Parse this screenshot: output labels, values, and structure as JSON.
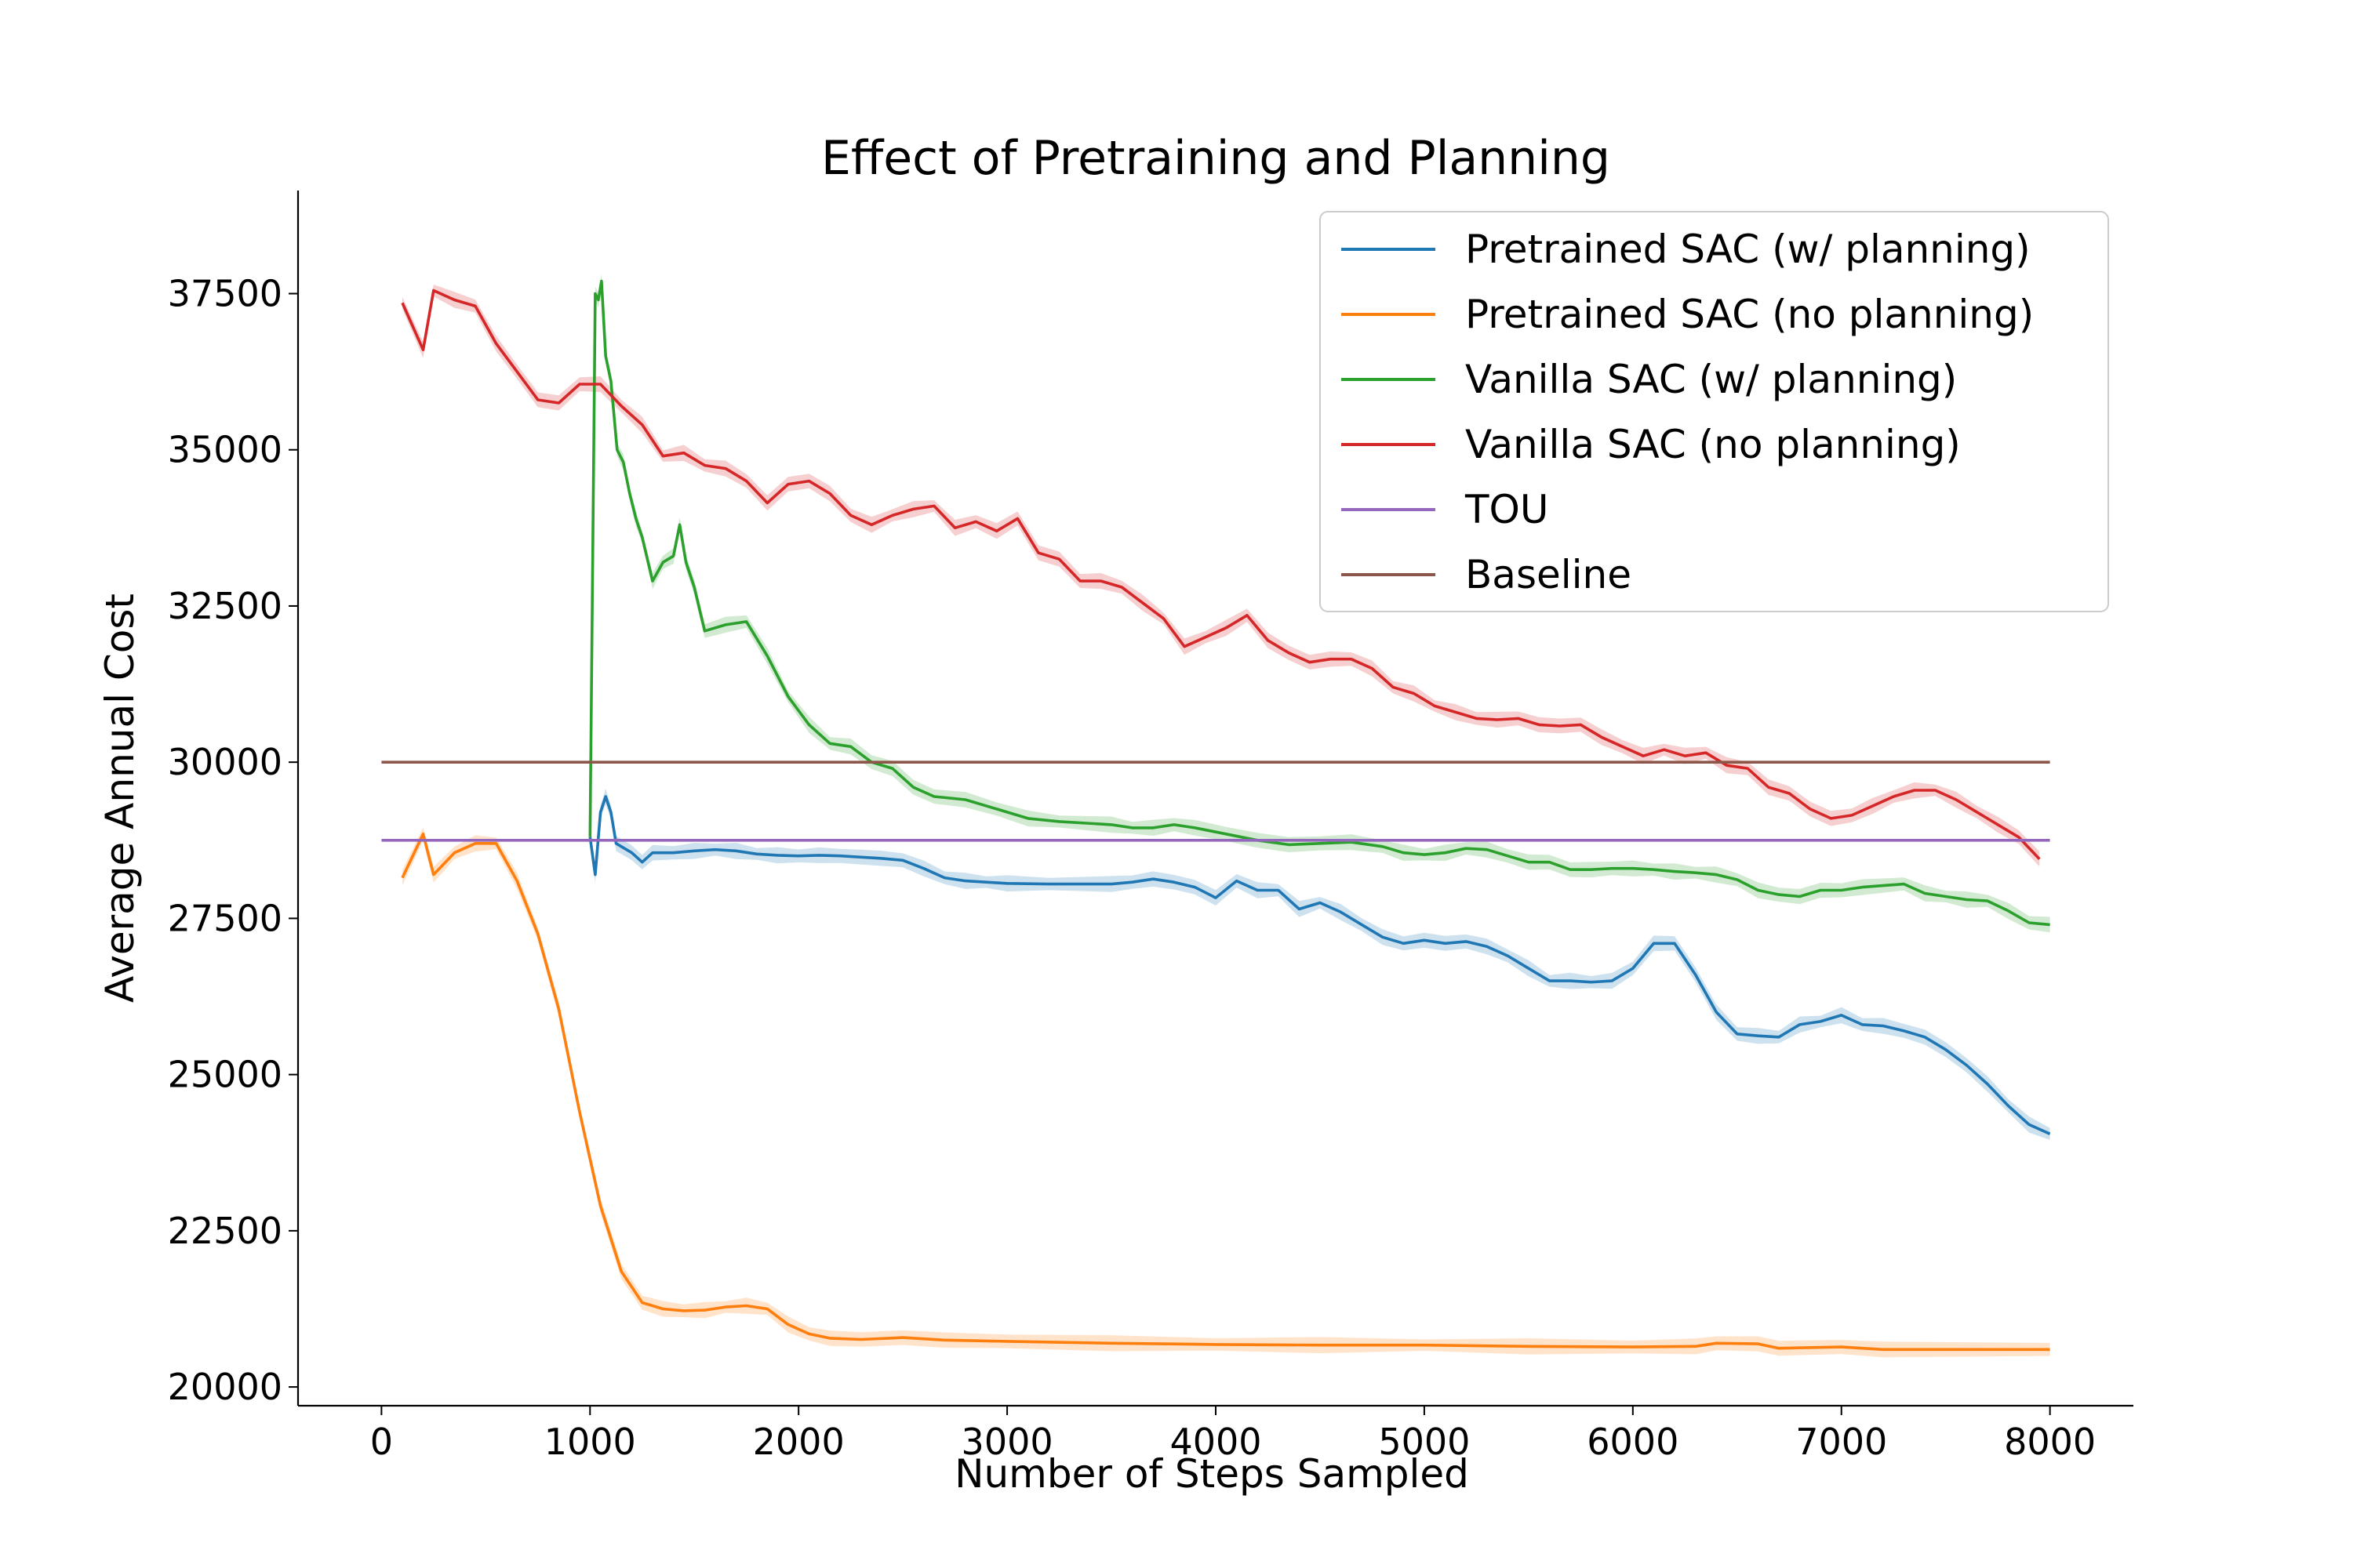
{
  "chart_data": {
    "type": "line",
    "title": "Effect of Pretraining and Planning",
    "xlabel": "Number of Steps Sampled",
    "ylabel": "Average Annual Cost",
    "xlim": [
      -400,
      8400
    ],
    "ylim": [
      19700,
      39150
    ],
    "xticks": [
      0,
      1000,
      2000,
      3000,
      4000,
      5000,
      6000,
      7000,
      8000
    ],
    "yticks": [
      20000,
      22500,
      25000,
      27500,
      30000,
      32500,
      35000,
      37500
    ],
    "legend_position": "top-right",
    "grid": false,
    "series": [
      {
        "name": "Pretrained SAC (w/ planning)",
        "color": "#1f77b4",
        "band": true,
        "points": [
          [
            1000,
            28800
          ],
          [
            1025,
            28200
          ],
          [
            1050,
            29200
          ],
          [
            1075,
            29450
          ],
          [
            1100,
            29200
          ],
          [
            1125,
            28700
          ],
          [
            1200,
            28550
          ],
          [
            1250,
            28400
          ],
          [
            1300,
            28550
          ],
          [
            1400,
            28550
          ],
          [
            1500,
            28580
          ],
          [
            1600,
            28600
          ],
          [
            1700,
            28580
          ],
          [
            1800,
            28530
          ],
          [
            1900,
            28510
          ],
          [
            2000,
            28500
          ],
          [
            2100,
            28510
          ],
          [
            2200,
            28500
          ],
          [
            2300,
            28480
          ],
          [
            2400,
            28460
          ],
          [
            2500,
            28430
          ],
          [
            2600,
            28300
          ],
          [
            2700,
            28150
          ],
          [
            2800,
            28100
          ],
          [
            2900,
            28080
          ],
          [
            3000,
            28060
          ],
          [
            3200,
            28050
          ],
          [
            3500,
            28050
          ],
          [
            3600,
            28080
          ],
          [
            3700,
            28130
          ],
          [
            3800,
            28080
          ],
          [
            3900,
            28000
          ],
          [
            4000,
            27830
          ],
          [
            4100,
            28100
          ],
          [
            4200,
            27950
          ],
          [
            4300,
            27950
          ],
          [
            4400,
            27650
          ],
          [
            4500,
            27750
          ],
          [
            4600,
            27600
          ],
          [
            4700,
            27400
          ],
          [
            4800,
            27200
          ],
          [
            4900,
            27100
          ],
          [
            5000,
            27150
          ],
          [
            5100,
            27100
          ],
          [
            5200,
            27130
          ],
          [
            5300,
            27050
          ],
          [
            5400,
            26900
          ],
          [
            5500,
            26700
          ],
          [
            5600,
            26500
          ],
          [
            5700,
            26500
          ],
          [
            5800,
            26480
          ],
          [
            5900,
            26500
          ],
          [
            6000,
            26700
          ],
          [
            6100,
            27100
          ],
          [
            6200,
            27100
          ],
          [
            6300,
            26600
          ],
          [
            6400,
            26000
          ],
          [
            6500,
            25650
          ],
          [
            6600,
            25620
          ],
          [
            6700,
            25600
          ],
          [
            6800,
            25800
          ],
          [
            6900,
            25850
          ],
          [
            7000,
            25950
          ],
          [
            7100,
            25800
          ],
          [
            7200,
            25780
          ],
          [
            7300,
            25700
          ],
          [
            7400,
            25600
          ],
          [
            7500,
            25400
          ],
          [
            7600,
            25150
          ],
          [
            7700,
            24850
          ],
          [
            7800,
            24500
          ],
          [
            7900,
            24200
          ],
          [
            8000,
            24050
          ]
        ]
      },
      {
        "name": "Pretrained SAC (no planning)",
        "color": "#ff7f0e",
        "band": true,
        "points": [
          [
            100,
            28150
          ],
          [
            200,
            28850
          ],
          [
            250,
            28200
          ],
          [
            350,
            28550
          ],
          [
            450,
            28700
          ],
          [
            550,
            28700
          ],
          [
            650,
            28100
          ],
          [
            750,
            27250
          ],
          [
            850,
            26050
          ],
          [
            950,
            24400
          ],
          [
            1050,
            22900
          ],
          [
            1150,
            21850
          ],
          [
            1250,
            21350
          ],
          [
            1350,
            21250
          ],
          [
            1450,
            21220
          ],
          [
            1550,
            21230
          ],
          [
            1650,
            21280
          ],
          [
            1750,
            21300
          ],
          [
            1850,
            21250
          ],
          [
            1950,
            21000
          ],
          [
            2050,
            20850
          ],
          [
            2150,
            20780
          ],
          [
            2300,
            20760
          ],
          [
            2500,
            20790
          ],
          [
            2700,
            20750
          ],
          [
            3000,
            20730
          ],
          [
            3500,
            20700
          ],
          [
            4000,
            20680
          ],
          [
            4500,
            20670
          ],
          [
            5000,
            20670
          ],
          [
            5500,
            20650
          ],
          [
            6000,
            20640
          ],
          [
            6300,
            20650
          ],
          [
            6400,
            20700
          ],
          [
            6600,
            20690
          ],
          [
            6700,
            20620
          ],
          [
            7000,
            20640
          ],
          [
            7200,
            20600
          ],
          [
            8000,
            20600
          ]
        ]
      },
      {
        "name": "Vanilla SAC (w/ planning)",
        "color": "#2ca02c",
        "band": true,
        "points": [
          [
            1000,
            28800
          ],
          [
            1025,
            37500
          ],
          [
            1040,
            37400
          ],
          [
            1055,
            37700
          ],
          [
            1075,
            36500
          ],
          [
            1100,
            36100
          ],
          [
            1130,
            35000
          ],
          [
            1160,
            34800
          ],
          [
            1190,
            34300
          ],
          [
            1220,
            33900
          ],
          [
            1250,
            33600
          ],
          [
            1300,
            32900
          ],
          [
            1350,
            33200
          ],
          [
            1400,
            33300
          ],
          [
            1430,
            33800
          ],
          [
            1460,
            33200
          ],
          [
            1500,
            32800
          ],
          [
            1550,
            32100
          ],
          [
            1650,
            32200
          ],
          [
            1750,
            32250
          ],
          [
            1850,
            31700
          ],
          [
            1950,
            31050
          ],
          [
            2050,
            30600
          ],
          [
            2150,
            30300
          ],
          [
            2250,
            30250
          ],
          [
            2350,
            30000
          ],
          [
            2450,
            29900
          ],
          [
            2550,
            29600
          ],
          [
            2650,
            29450
          ],
          [
            2800,
            29400
          ],
          [
            2950,
            29250
          ],
          [
            3100,
            29100
          ],
          [
            3250,
            29050
          ],
          [
            3500,
            29000
          ],
          [
            3600,
            28950
          ],
          [
            3700,
            28950
          ],
          [
            3800,
            29000
          ],
          [
            3900,
            28950
          ],
          [
            4050,
            28850
          ],
          [
            4200,
            28750
          ],
          [
            4350,
            28680
          ],
          [
            4500,
            28700
          ],
          [
            4650,
            28720
          ],
          [
            4800,
            28650
          ],
          [
            4900,
            28550
          ],
          [
            5000,
            28520
          ],
          [
            5100,
            28550
          ],
          [
            5200,
            28620
          ],
          [
            5300,
            28600
          ],
          [
            5400,
            28500
          ],
          [
            5500,
            28400
          ],
          [
            5600,
            28400
          ],
          [
            5700,
            28280
          ],
          [
            5800,
            28280
          ],
          [
            5900,
            28300
          ],
          [
            6000,
            28300
          ],
          [
            6100,
            28280
          ],
          [
            6200,
            28250
          ],
          [
            6300,
            28230
          ],
          [
            6400,
            28200
          ],
          [
            6500,
            28120
          ],
          [
            6600,
            27950
          ],
          [
            6700,
            27880
          ],
          [
            6800,
            27850
          ],
          [
            6900,
            27950
          ],
          [
            7000,
            27950
          ],
          [
            7100,
            28000
          ],
          [
            7300,
            28050
          ],
          [
            7400,
            27900
          ],
          [
            7500,
            27850
          ],
          [
            7600,
            27800
          ],
          [
            7700,
            27780
          ],
          [
            7800,
            27620
          ],
          [
            7900,
            27430
          ],
          [
            8000,
            27400
          ]
        ]
      },
      {
        "name": "Vanilla SAC (no planning)",
        "color": "#d62728",
        "band": true,
        "points": [
          [
            100,
            37350
          ],
          [
            200,
            36600
          ],
          [
            250,
            37550
          ],
          [
            350,
            37400
          ],
          [
            450,
            37300
          ],
          [
            550,
            36700
          ],
          [
            650,
            36250
          ],
          [
            750,
            35800
          ],
          [
            850,
            35750
          ],
          [
            950,
            36050
          ],
          [
            1050,
            36050
          ],
          [
            1150,
            35700
          ],
          [
            1250,
            35400
          ],
          [
            1350,
            34900
          ],
          [
            1450,
            34950
          ],
          [
            1550,
            34750
          ],
          [
            1650,
            34700
          ],
          [
            1750,
            34500
          ],
          [
            1850,
            34150
          ],
          [
            1950,
            34450
          ],
          [
            2050,
            34500
          ],
          [
            2150,
            34300
          ],
          [
            2250,
            33950
          ],
          [
            2350,
            33800
          ],
          [
            2450,
            33950
          ],
          [
            2550,
            34050
          ],
          [
            2650,
            34100
          ],
          [
            2750,
            33750
          ],
          [
            2850,
            33850
          ],
          [
            2950,
            33700
          ],
          [
            3050,
            33900
          ],
          [
            3150,
            33350
          ],
          [
            3250,
            33250
          ],
          [
            3350,
            32900
          ],
          [
            3450,
            32900
          ],
          [
            3550,
            32800
          ],
          [
            3650,
            32550
          ],
          [
            3750,
            32300
          ],
          [
            3850,
            31850
          ],
          [
            3950,
            32000
          ],
          [
            4050,
            32150
          ],
          [
            4150,
            32350
          ],
          [
            4250,
            31950
          ],
          [
            4350,
            31750
          ],
          [
            4450,
            31600
          ],
          [
            4550,
            31650
          ],
          [
            4650,
            31650
          ],
          [
            4750,
            31500
          ],
          [
            4850,
            31200
          ],
          [
            4950,
            31100
          ],
          [
            5050,
            30900
          ],
          [
            5150,
            30800
          ],
          [
            5250,
            30700
          ],
          [
            5350,
            30680
          ],
          [
            5450,
            30700
          ],
          [
            5550,
            30600
          ],
          [
            5650,
            30580
          ],
          [
            5750,
            30600
          ],
          [
            5850,
            30400
          ],
          [
            5950,
            30250
          ],
          [
            6050,
            30100
          ],
          [
            6150,
            30200
          ],
          [
            6250,
            30100
          ],
          [
            6350,
            30150
          ],
          [
            6450,
            29950
          ],
          [
            6550,
            29900
          ],
          [
            6650,
            29600
          ],
          [
            6750,
            29500
          ],
          [
            6850,
            29250
          ],
          [
            6950,
            29100
          ],
          [
            7050,
            29150
          ],
          [
            7150,
            29300
          ],
          [
            7250,
            29450
          ],
          [
            7350,
            29550
          ],
          [
            7450,
            29550
          ],
          [
            7550,
            29400
          ],
          [
            7650,
            29200
          ],
          [
            7750,
            29000
          ],
          [
            7850,
            28800
          ],
          [
            7950,
            28450
          ]
        ]
      },
      {
        "name": "TOU",
        "color": "#9467bd",
        "band": false,
        "points": [
          [
            0,
            28750
          ],
          [
            8000,
            28750
          ]
        ]
      },
      {
        "name": "Baseline",
        "color": "#8c564b",
        "band": false,
        "points": [
          [
            0,
            30000
          ],
          [
            8000,
            30000
          ]
        ]
      }
    ]
  }
}
